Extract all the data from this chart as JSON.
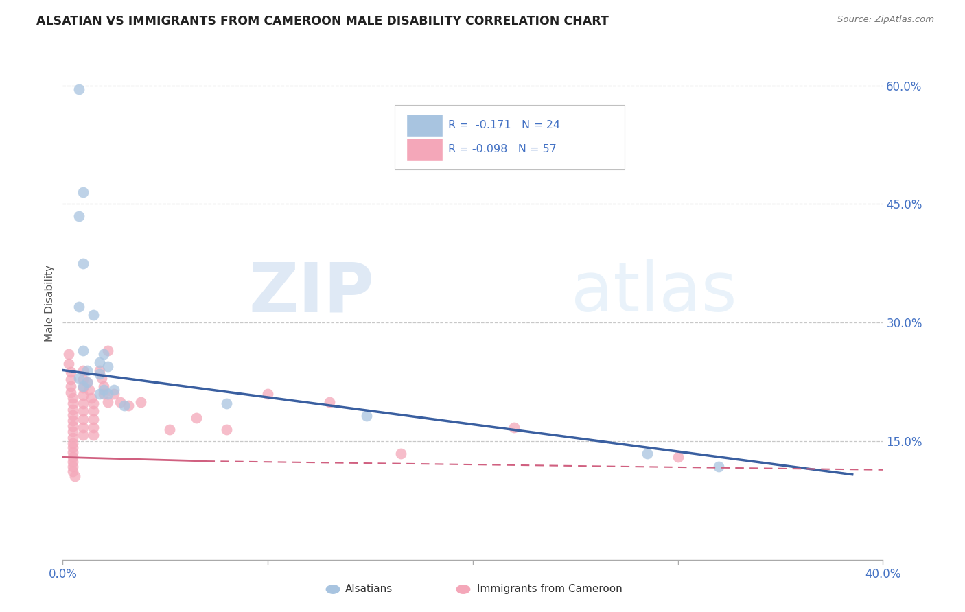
{
  "title": "ALSATIAN VS IMMIGRANTS FROM CAMEROON MALE DISABILITY CORRELATION CHART",
  "source": "Source: ZipAtlas.com",
  "ylabel_label": "Male Disability",
  "xlim": [
    0.0,
    0.4
  ],
  "ylim": [
    0.0,
    0.65
  ],
  "xtick_positions": [
    0.0,
    0.1,
    0.2,
    0.3,
    0.4
  ],
  "xtick_labels": [
    "0.0%",
    "",
    "",
    "",
    "40.0%"
  ],
  "ytick_positions": [
    0.15,
    0.3,
    0.45,
    0.6
  ],
  "ytick_labels": [
    "15.0%",
    "30.0%",
    "45.0%",
    "60.0%"
  ],
  "grid_color": "#c8c8c8",
  "background_color": "#ffffff",
  "alsatian_color": "#a8c4e0",
  "cameroon_color": "#f4a7b9",
  "alsatian_line_color": "#3a5fa0",
  "cameroon_line_color": "#d06080",
  "alsatian_scatter": [
    [
      0.008,
      0.595
    ],
    [
      0.01,
      0.465
    ],
    [
      0.008,
      0.435
    ],
    [
      0.01,
      0.375
    ],
    [
      0.008,
      0.32
    ],
    [
      0.015,
      0.31
    ],
    [
      0.01,
      0.265
    ],
    [
      0.02,
      0.26
    ],
    [
      0.018,
      0.25
    ],
    [
      0.022,
      0.245
    ],
    [
      0.012,
      0.24
    ],
    [
      0.018,
      0.235
    ],
    [
      0.008,
      0.23
    ],
    [
      0.012,
      0.225
    ],
    [
      0.01,
      0.22
    ],
    [
      0.02,
      0.215
    ],
    [
      0.025,
      0.215
    ],
    [
      0.018,
      0.21
    ],
    [
      0.022,
      0.21
    ],
    [
      0.03,
      0.195
    ],
    [
      0.08,
      0.198
    ],
    [
      0.148,
      0.182
    ],
    [
      0.285,
      0.135
    ],
    [
      0.32,
      0.118
    ]
  ],
  "cameroon_scatter": [
    [
      0.003,
      0.26
    ],
    [
      0.003,
      0.248
    ],
    [
      0.004,
      0.238
    ],
    [
      0.004,
      0.228
    ],
    [
      0.004,
      0.22
    ],
    [
      0.004,
      0.212
    ],
    [
      0.005,
      0.205
    ],
    [
      0.005,
      0.198
    ],
    [
      0.005,
      0.19
    ],
    [
      0.005,
      0.183
    ],
    [
      0.005,
      0.176
    ],
    [
      0.005,
      0.169
    ],
    [
      0.005,
      0.162
    ],
    [
      0.005,
      0.155
    ],
    [
      0.005,
      0.148
    ],
    [
      0.005,
      0.142
    ],
    [
      0.005,
      0.136
    ],
    [
      0.005,
      0.13
    ],
    [
      0.005,
      0.124
    ],
    [
      0.005,
      0.118
    ],
    [
      0.005,
      0.112
    ],
    [
      0.006,
      0.106
    ],
    [
      0.01,
      0.24
    ],
    [
      0.01,
      0.228
    ],
    [
      0.01,
      0.218
    ],
    [
      0.01,
      0.208
    ],
    [
      0.01,
      0.198
    ],
    [
      0.01,
      0.188
    ],
    [
      0.01,
      0.178
    ],
    [
      0.01,
      0.168
    ],
    [
      0.01,
      0.158
    ],
    [
      0.012,
      0.225
    ],
    [
      0.013,
      0.215
    ],
    [
      0.014,
      0.205
    ],
    [
      0.015,
      0.198
    ],
    [
      0.015,
      0.188
    ],
    [
      0.015,
      0.178
    ],
    [
      0.015,
      0.168
    ],
    [
      0.015,
      0.158
    ],
    [
      0.018,
      0.24
    ],
    [
      0.019,
      0.23
    ],
    [
      0.02,
      0.22
    ],
    [
      0.02,
      0.21
    ],
    [
      0.022,
      0.2
    ],
    [
      0.022,
      0.265
    ],
    [
      0.025,
      0.21
    ],
    [
      0.028,
      0.2
    ],
    [
      0.032,
      0.195
    ],
    [
      0.038,
      0.2
    ],
    [
      0.052,
      0.165
    ],
    [
      0.065,
      0.18
    ],
    [
      0.08,
      0.165
    ],
    [
      0.1,
      0.21
    ],
    [
      0.13,
      0.2
    ],
    [
      0.165,
      0.135
    ],
    [
      0.22,
      0.168
    ],
    [
      0.3,
      0.13
    ]
  ],
  "alsatian_trendline_solid": [
    [
      0.0,
      0.24
    ],
    [
      0.385,
      0.108
    ]
  ],
  "cameroon_trendline_solid": [
    [
      0.0,
      0.13
    ],
    [
      0.07,
      0.125
    ]
  ],
  "cameroon_trendline_dashed": [
    [
      0.07,
      0.125
    ],
    [
      0.4,
      0.114
    ]
  ]
}
